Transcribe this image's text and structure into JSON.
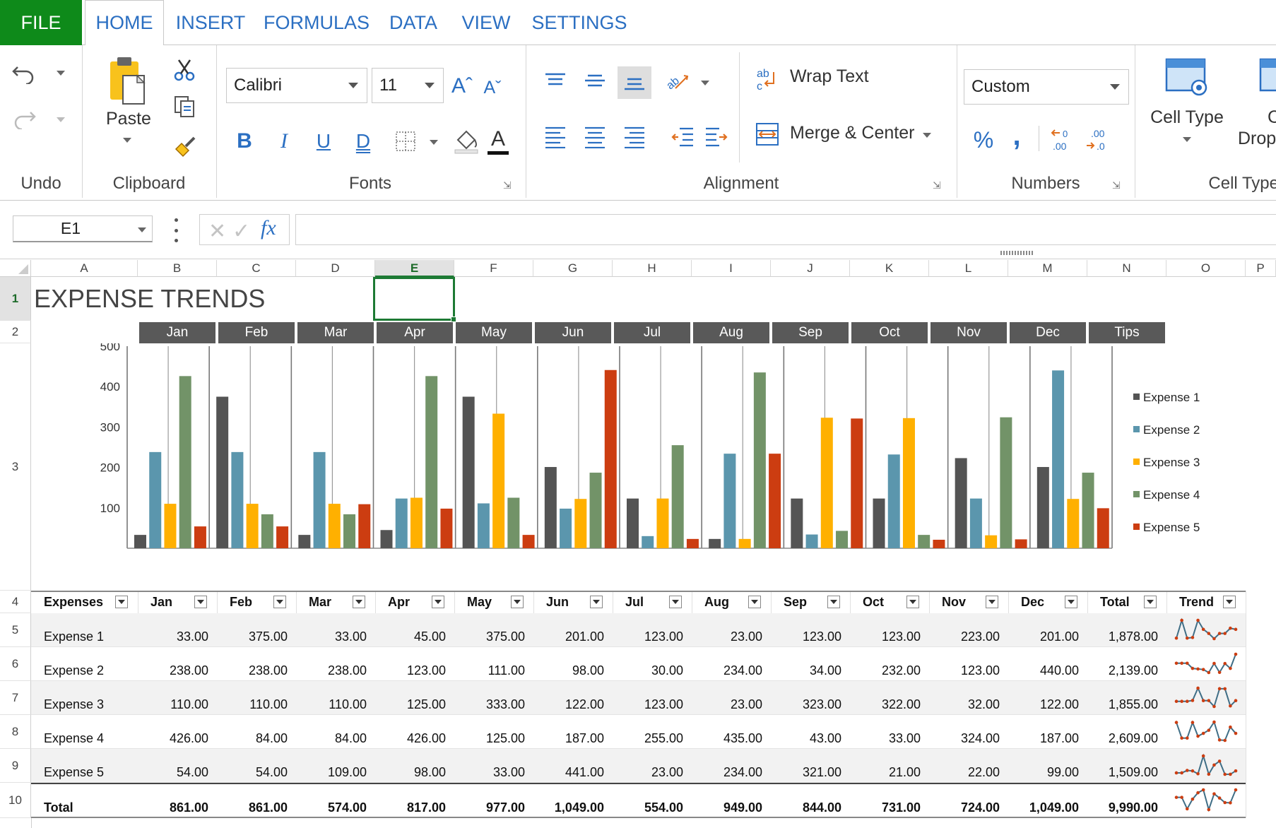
{
  "tabs": [
    {
      "label": "FILE"
    },
    {
      "label": "HOME"
    },
    {
      "label": "INSERT"
    },
    {
      "label": "FORMULAS"
    },
    {
      "label": "DATA"
    },
    {
      "label": "VIEW"
    },
    {
      "label": "SETTINGS"
    }
  ],
  "ribbon": {
    "undo_group": "Undo",
    "clipboard_group": "Clipboard",
    "paste_label": "Paste",
    "fonts_group": "Fonts",
    "font_name": "Calibri",
    "font_size": "11",
    "bold": "B",
    "italic": "I",
    "underline": "U",
    "double_underline": "D",
    "font_color_glyph": "A",
    "alignment_group": "Alignment",
    "wrap_text": "Wrap Text",
    "merge_center": "Merge & Center",
    "numbers_group": "Numbers",
    "number_format": "Custom",
    "percent_glyph": "%",
    "comma_glyph": ",",
    "cell_type_label": "Cell Type",
    "cell_type_group": "Cell Type",
    "cell_drop_partial_top": "C",
    "cell_drop_partial_bottom": "Drop"
  },
  "formula_bar": {
    "name_box": "E1",
    "formula": ""
  },
  "sheet": {
    "columns": [
      "A",
      "B",
      "C",
      "D",
      "E",
      "F",
      "G",
      "H",
      "I",
      "J",
      "K",
      "L",
      "M",
      "N",
      "O",
      "P"
    ],
    "selected_column": "E",
    "rows": [
      "1",
      "2",
      "3",
      "4",
      "5",
      "6",
      "7",
      "8",
      "9",
      "10"
    ],
    "selected_row": "1",
    "title": "EXPENSE TRENDS",
    "month_band": [
      "Jan",
      "Feb",
      "Mar",
      "Apr",
      "May",
      "Jun",
      "Jul",
      "Aug",
      "Sep",
      "Oct",
      "Nov",
      "Dec",
      "Tips"
    ],
    "table_headers": [
      "Expenses",
      "Jan",
      "Feb",
      "Mar",
      "Apr",
      "May",
      "Jun",
      "Jul",
      "Aug",
      "Sep",
      "Oct",
      "Nov",
      "Dec",
      "Total",
      "Trend"
    ],
    "table_rows": [
      {
        "label": "Expense 1",
        "values": [
          "33.00",
          "375.00",
          "33.00",
          "45.00",
          "375.00",
          "201.00",
          "123.00",
          "23.00",
          "123.00",
          "123.00",
          "223.00",
          "201.00"
        ],
        "total": "1,878.00"
      },
      {
        "label": "Expense 2",
        "values": [
          "238.00",
          "238.00",
          "238.00",
          "123.00",
          "111.00",
          "98.00",
          "30.00",
          "234.00",
          "34.00",
          "232.00",
          "123.00",
          "440.00"
        ],
        "total": "2,139.00"
      },
      {
        "label": "Expense 3",
        "values": [
          "110.00",
          "110.00",
          "110.00",
          "125.00",
          "333.00",
          "122.00",
          "123.00",
          "23.00",
          "323.00",
          "322.00",
          "32.00",
          "122.00"
        ],
        "total": "1,855.00"
      },
      {
        "label": "Expense 4",
        "values": [
          "426.00",
          "84.00",
          "84.00",
          "426.00",
          "125.00",
          "187.00",
          "255.00",
          "435.00",
          "43.00",
          "33.00",
          "324.00",
          "187.00"
        ],
        "total": "2,609.00"
      },
      {
        "label": "Expense 5",
        "values": [
          "54.00",
          "54.00",
          "109.00",
          "98.00",
          "33.00",
          "441.00",
          "23.00",
          "234.00",
          "321.00",
          "21.00",
          "22.00",
          "99.00"
        ],
        "total": "1,509.00"
      }
    ],
    "totals_row": {
      "label": "Total",
      "values": [
        "861.00",
        "861.00",
        "574.00",
        "817.00",
        "977.00",
        "1,049.00",
        "554.00",
        "949.00",
        "844.00",
        "731.00",
        "724.00",
        "1,049.00"
      ],
      "total": "9,990.00"
    }
  },
  "chart_data": {
    "type": "bar",
    "categories": [
      "Jan",
      "Feb",
      "Mar",
      "Apr",
      "May",
      "Jun",
      "Jul",
      "Aug",
      "Sep",
      "Oct",
      "Nov",
      "Dec"
    ],
    "series": [
      {
        "name": "Expense 1",
        "color": "#545454",
        "values": [
          33,
          375,
          33,
          45,
          375,
          201,
          123,
          23,
          123,
          123,
          223,
          201
        ]
      },
      {
        "name": "Expense 2",
        "color": "#5b96ad",
        "values": [
          238,
          238,
          238,
          123,
          111,
          98,
          30,
          234,
          34,
          232,
          123,
          440
        ]
      },
      {
        "name": "Expense 3",
        "color": "#ffb000",
        "values": [
          110,
          110,
          110,
          125,
          333,
          122,
          123,
          23,
          323,
          322,
          32,
          122
        ]
      },
      {
        "name": "Expense 4",
        "color": "#729368",
        "values": [
          426,
          84,
          84,
          426,
          125,
          187,
          255,
          435,
          43,
          33,
          324,
          187
        ]
      },
      {
        "name": "Expense 5",
        "color": "#cc3d11",
        "values": [
          54,
          54,
          109,
          98,
          33,
          441,
          23,
          234,
          321,
          21,
          22,
          99
        ]
      }
    ],
    "y_ticks": [
      "500",
      "400",
      "300",
      "200",
      "100"
    ],
    "ylim": [
      0,
      500
    ],
    "legend": "right"
  },
  "colors": {
    "file_tab": "#0e8a1a",
    "accent_blue": "#2b6fc2",
    "selection_green": "#1d7a34",
    "band_gray": "#595959",
    "sparkline_line": "#3f6e86",
    "sparkline_marker": "#cc3d11"
  }
}
